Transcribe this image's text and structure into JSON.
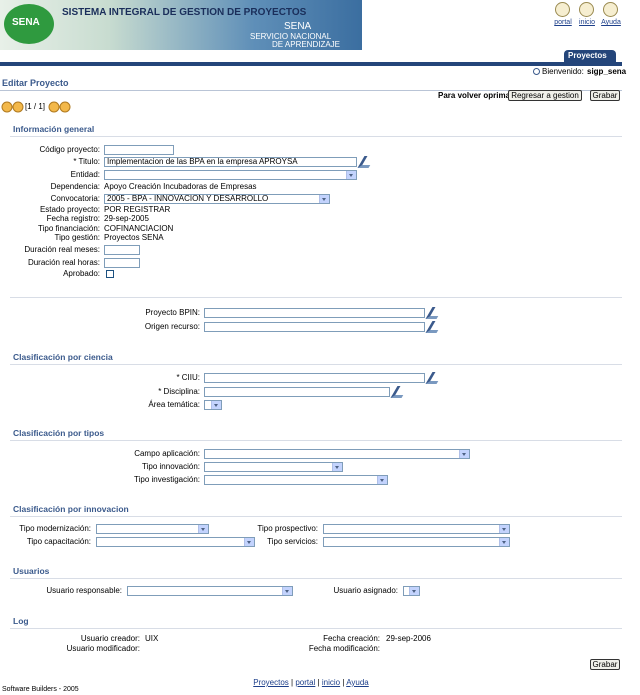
{
  "header": {
    "system_title": "SISTEMA INTEGRAL DE GESTION DE PROYECTOS",
    "logo_text": "SENA",
    "brand": "SENA",
    "brand_line1": "SERVICIO NACIONAL",
    "brand_line2": "DE APRENDIZAJE"
  },
  "top_links": [
    "portal",
    "inicio",
    "Ayuda"
  ],
  "tab": "Proyectos",
  "welcome": {
    "label": "Bienvenido:",
    "user": "sigp_sena"
  },
  "page_title": "Editar Proyecto",
  "pager": "[1 / 1]",
  "return_prompt": "Para volver oprima",
  "buttons": {
    "back": "Regresar a gestion",
    "save": "Grabar"
  },
  "sections": [
    {
      "title": "Información general",
      "fields": [
        {
          "label": "Código proyecto:"
        },
        {
          "label": "* Titulo:",
          "value": "Implementacion de las BPA en la empresa APROYSA"
        },
        {
          "label": "Entidad:"
        },
        {
          "label": "Dependencia:",
          "value": "Apoyo Creación Incubadoras de Empresas"
        },
        {
          "label": "Convocatoria:",
          "value": "2005 - BPA - INNOVACION Y DESARROLLO"
        },
        {
          "label": "Estado proyecto:",
          "value": "POR REGISTRAR"
        },
        {
          "label": "Fecha registro:",
          "value": "29-sep-2005"
        },
        {
          "label": "Tipo financiación:",
          "value": "COFINANCIACION"
        },
        {
          "label": "Tipo gestión:",
          "value": "Proyectos SENA"
        },
        {
          "label": "Duración real meses:"
        },
        {
          "label": "Duración real horas:"
        },
        {
          "label": "Aprobado:"
        }
      ]
    },
    {
      "fields": [
        {
          "label": "Proyecto BPIN:"
        },
        {
          "label": "Origen recurso:"
        }
      ]
    },
    {
      "title": "Clasificación por ciencia",
      "fields": [
        {
          "label": "* CIIU:"
        },
        {
          "label": "* Disciplina:"
        },
        {
          "label": "Área temática:"
        }
      ]
    },
    {
      "title": "Clasificación por tipos",
      "fields": [
        {
          "label": "Campo aplicación:"
        },
        {
          "label": "Tipo innovación:"
        },
        {
          "label": "Tipo investigación:"
        }
      ]
    },
    {
      "title": "Clasificación por innovacion",
      "fields": [
        {
          "label": "Tipo modernización:"
        },
        {
          "label": "Tipo prospectivo:"
        },
        {
          "label": "Tipo capacitación:"
        },
        {
          "label": "Tipo servicios:"
        }
      ]
    },
    {
      "title": "Usuarios",
      "fields": [
        {
          "label": "Usuario responsable:"
        },
        {
          "label": "Usuario asignado:"
        }
      ]
    },
    {
      "title": "Log",
      "fields": [
        {
          "label": "Usuario creador:",
          "value": "UIX"
        },
        {
          "label": "Fecha creación:",
          "value": "29-sep-2006"
        },
        {
          "label": "Usuario modificador:"
        },
        {
          "label": "Fecha modificación:"
        }
      ]
    }
  ],
  "footer": {
    "links": [
      "Proyectos",
      "portal",
      "inicio",
      "Ayuda"
    ],
    "credit": "Software Builders - 2005"
  }
}
